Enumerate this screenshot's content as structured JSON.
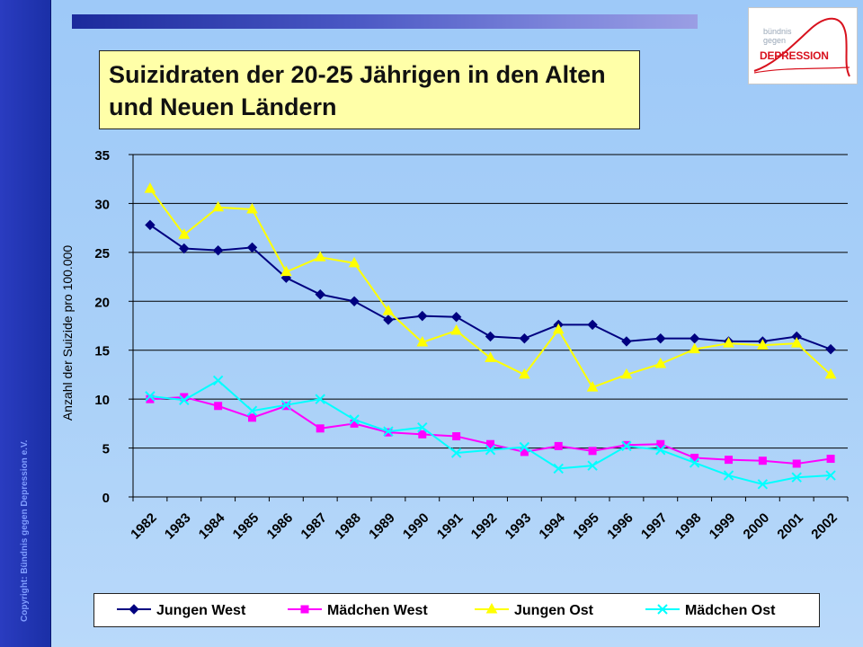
{
  "copyright": "Copyright: Bündnis gegen Depression e.V.",
  "logo": {
    "line1": "bündnis",
    "line2": "gegen",
    "main": "DEPRESSION"
  },
  "colors": {
    "jungen_west": "#000080",
    "maedchen_west": "#ff00ff",
    "jungen_ost": "#ffff00",
    "maedchen_ost": "#00ffff"
  },
  "chart_data": {
    "type": "line",
    "title": "Suizidraten der 20-25 Jährigen in den Alten und Neuen Ländern",
    "xlabel": "",
    "ylabel": "Anzahl der Suizide pro 100.000",
    "categories": [
      "1982",
      "1983",
      "1984",
      "1985",
      "1986",
      "1987",
      "1988",
      "1989",
      "1990",
      "1991",
      "1992",
      "1993",
      "1994",
      "1995",
      "1996",
      "1997",
      "1998",
      "1999",
      "2000",
      "2001",
      "2002"
    ],
    "yticks": [
      "0",
      "5",
      "10",
      "15",
      "20",
      "25",
      "30",
      "35"
    ],
    "ylim": [
      0,
      35
    ],
    "grid": true,
    "legend_position": "bottom",
    "series": [
      {
        "name": "Jungen West",
        "color": "#000080",
        "marker": "diamond",
        "values": [
          27.8,
          25.4,
          25.2,
          25.5,
          22.4,
          20.7,
          20.0,
          18.1,
          18.5,
          18.4,
          16.4,
          16.2,
          17.6,
          17.6,
          15.9,
          16.2,
          16.2,
          15.9,
          15.9,
          16.4,
          15.1
        ]
      },
      {
        "name": "Mädchen West",
        "color": "#ff00ff",
        "marker": "square",
        "values": [
          10.0,
          10.2,
          9.3,
          8.1,
          9.3,
          7.0,
          7.5,
          6.6,
          6.4,
          6.2,
          5.4,
          4.6,
          5.2,
          4.7,
          5.3,
          5.4,
          4.0,
          3.8,
          3.7,
          3.4,
          3.9
        ]
      },
      {
        "name": "Jungen Ost",
        "color": "#ffff00",
        "marker": "triangle",
        "values": [
          31.5,
          26.8,
          29.6,
          29.4,
          23.0,
          24.5,
          23.9,
          19.0,
          15.8,
          17.0,
          14.2,
          12.5,
          17.1,
          11.2,
          12.5,
          13.6,
          15.1,
          15.7,
          15.5,
          15.7,
          12.5
        ]
      },
      {
        "name": "Mädchen Ost",
        "color": "#00ffff",
        "marker": "x",
        "values": [
          10.3,
          9.9,
          11.9,
          8.8,
          9.4,
          10.0,
          7.9,
          6.7,
          7.1,
          4.5,
          4.8,
          5.1,
          2.9,
          3.2,
          5.2,
          4.8,
          3.5,
          2.2,
          1.3,
          2.0,
          2.2
        ]
      }
    ]
  }
}
